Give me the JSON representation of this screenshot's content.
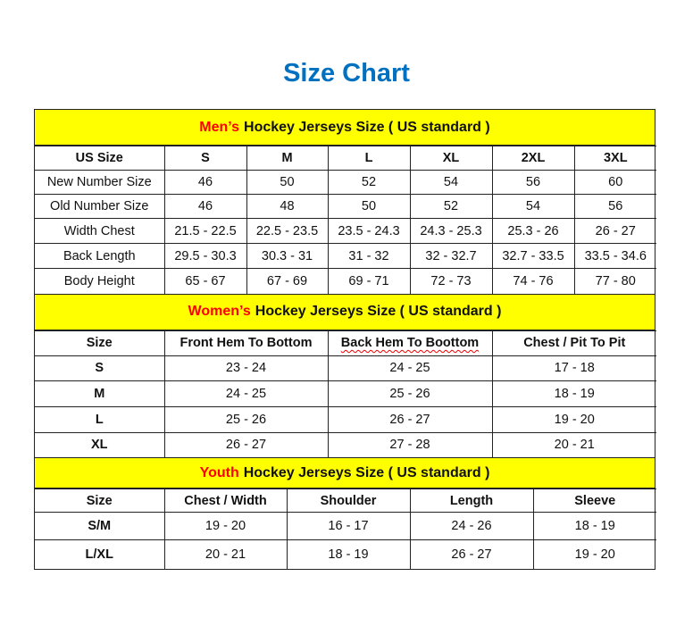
{
  "title": "Size Chart",
  "colors": {
    "title": "#0070c0",
    "highlight": "#ff0000",
    "header_bg": "#ffff00"
  },
  "sections": [
    {
      "highlight": "Men’s",
      "title": "Hockey Jerseys Size ( US standard )",
      "headers": [
        "US Size",
        "S",
        "M",
        "L",
        "XL",
        "2XL",
        "3XL"
      ],
      "rows": [
        [
          "New Number Size",
          "46",
          "50",
          "52",
          "54",
          "56",
          "60"
        ],
        [
          "Old Number Size",
          "46",
          "48",
          "50",
          "52",
          "54",
          "56"
        ],
        [
          "Width Chest",
          "21.5 - 22.5",
          "22.5 - 23.5",
          "23.5 - 24.3",
          "24.3 - 25.3",
          "25.3 - 26",
          "26 - 27"
        ],
        [
          "Back Length",
          "29.5 - 30.3",
          "30.3 - 31",
          "31 - 32",
          "32 - 32.7",
          "32.7 - 33.5",
          "33.5 - 34.6"
        ],
        [
          "Body Height",
          "65 - 67",
          "67 - 69",
          "69 - 71",
          "72 - 73",
          "74 - 76",
          "77 - 80"
        ]
      ]
    },
    {
      "highlight": "Women’s",
      "title": "Hockey Jerseys Size ( US standard )",
      "headers": [
        "Size",
        "Front Hem To Bottom",
        "Back Hem To Boottom",
        "Chest / Pit To Pit"
      ],
      "rows": [
        [
          "S",
          "23 - 24",
          "24 - 25",
          "17 - 18"
        ],
        [
          "M",
          "24 - 25",
          "25 - 26",
          "18 - 19"
        ],
        [
          "L",
          "25 - 26",
          "26 - 27",
          "19 - 20"
        ],
        [
          "XL",
          "26 - 27",
          "27 - 28",
          "20 - 21"
        ]
      ]
    },
    {
      "highlight": "Youth",
      "title": "Hockey Jerseys Size ( US standard )",
      "headers": [
        "Size",
        "Chest / Width",
        "Shoulder",
        "Length",
        "Sleeve"
      ],
      "rows": [
        [
          "S/M",
          "19 - 20",
          "16 - 17",
          "24 - 26",
          "18 - 19"
        ],
        [
          "L/XL",
          "20 - 21",
          "18 - 19",
          "26 - 27",
          "19 - 20"
        ]
      ]
    }
  ]
}
